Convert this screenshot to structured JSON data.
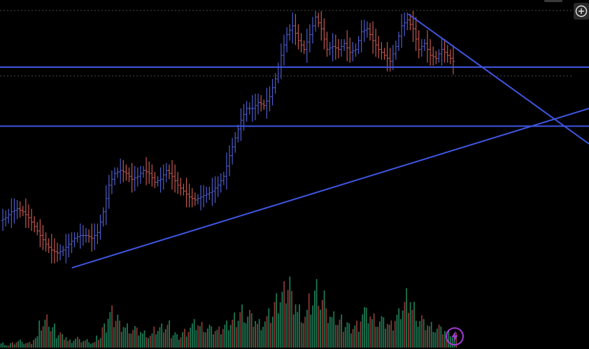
{
  "colors": {
    "background": "#000000",
    "candle": "#4e5ccc",
    "candle_alt": "#c4584f",
    "drawn_line": "#3f55e0",
    "volume_up": "#1f7a55",
    "volume_down": "#8c3a35",
    "accent": "#a23bd6"
  },
  "icons": {
    "zoom": "plus-circle-icon",
    "indicator": "lightning-icon"
  },
  "chart_data": {
    "type": "candlestick",
    "x_axis": "",
    "y_axis": "",
    "grid": false,
    "axes_visible": false,
    "price_ylim": [
      0,
      100
    ],
    "approx_close_series": [
      30,
      31,
      33,
      34,
      33,
      31,
      28,
      25,
      22,
      20,
      19,
      20,
      22,
      24,
      25,
      25,
      24,
      26,
      33,
      42,
      46,
      47,
      46,
      44,
      45,
      47,
      46,
      43,
      44,
      47,
      45,
      42,
      40,
      38,
      37,
      38,
      39,
      40,
      42,
      45,
      52,
      58,
      64,
      68,
      68,
      70,
      69,
      72,
      78,
      86,
      93,
      96,
      91,
      88,
      93,
      99,
      95,
      88,
      89,
      88,
      90,
      87,
      88,
      94,
      95,
      91,
      88,
      86,
      84,
      89,
      96,
      98,
      95,
      88,
      90,
      86,
      85,
      88,
      86,
      84
    ],
    "horizontal_lines": [
      {
        "name": "",
        "y": 82
      },
      {
        "name": "",
        "y": 62
      }
    ],
    "trend_lines": [
      {
        "from": {
          "t": 0.122,
          "y": 14
        },
        "to": {
          "t": 1.0,
          "y": 68
        }
      },
      {
        "from": {
          "t": 0.693,
          "y": 100
        },
        "to": {
          "t": 1.0,
          "y": 56
        }
      }
    ],
    "dotted_reference_lines": [
      {
        "y": 100
      },
      {
        "y": 79
      }
    ],
    "volume_values": [
      2,
      1,
      2,
      3,
      2,
      2,
      4,
      9,
      11,
      8,
      6,
      5,
      3,
      4,
      3,
      3,
      2,
      4,
      8,
      14,
      13,
      10,
      9,
      8,
      7,
      6,
      5,
      7,
      8,
      9,
      6,
      5,
      7,
      9,
      10,
      9,
      8,
      7,
      7,
      9,
      11,
      13,
      16,
      14,
      12,
      10,
      11,
      13,
      18,
      22,
      28,
      21,
      16,
      14,
      19,
      24,
      20,
      13,
      12,
      11,
      10,
      9,
      10,
      15,
      14,
      12,
      11,
      10,
      9,
      13,
      18,
      22,
      17,
      12,
      10,
      9,
      8,
      7,
      6,
      5
    ]
  }
}
